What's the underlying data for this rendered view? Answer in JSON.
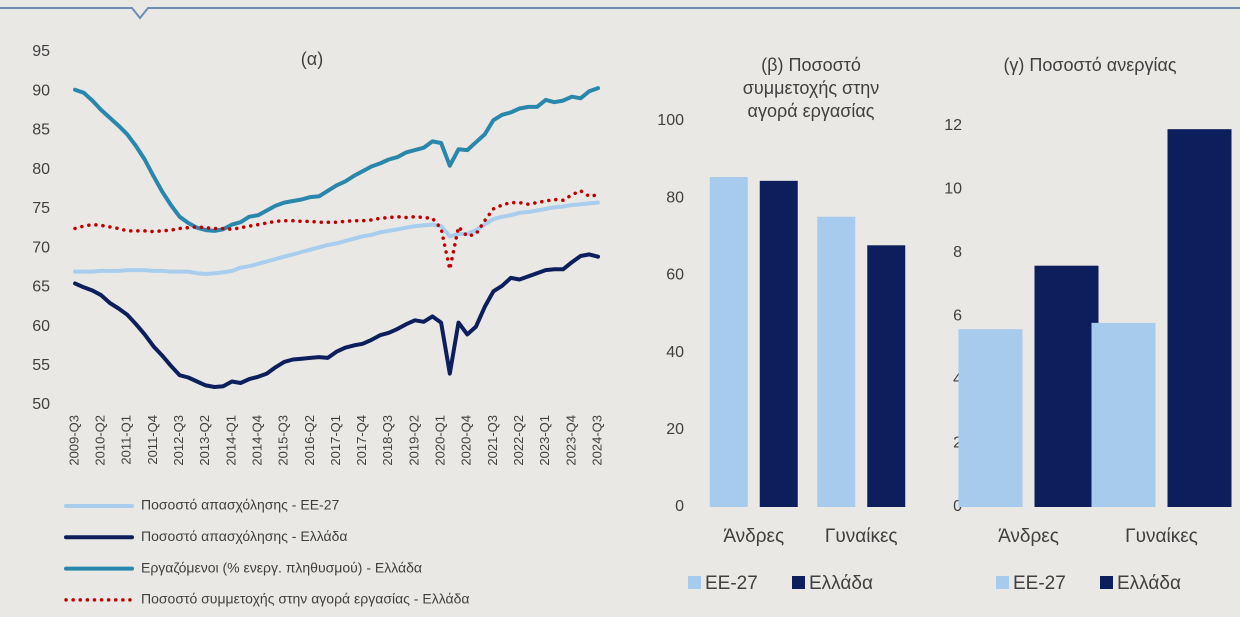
{
  "chart_data": [
    {
      "type": "line",
      "title": "(α)",
      "categories": [
        "2009-Q3",
        null,
        null,
        "2010-Q2",
        null,
        null,
        "2011-Q1",
        null,
        null,
        "2011-Q4",
        null,
        null,
        "2012-Q3",
        null,
        null,
        "2013-Q2",
        null,
        null,
        "2014-Q1",
        null,
        null,
        "2014-Q4",
        null,
        null,
        "2015-Q3",
        null,
        null,
        "2016-Q2",
        null,
        null,
        "2017-Q1",
        null,
        null,
        "2017-Q4",
        null,
        null,
        "2018-Q3",
        null,
        null,
        "2019-Q2",
        null,
        null,
        "2020-Q1",
        null,
        null,
        "2020-Q4",
        null,
        null,
        "2021-Q3",
        null,
        null,
        "2022-Q2",
        null,
        null,
        "2023-Q1",
        null,
        null,
        "2023-Q4",
        null,
        null,
        "2024-Q3"
      ],
      "ylim": [
        50,
        95
      ],
      "yticks": [
        50,
        55,
        60,
        65,
        70,
        75,
        80,
        85,
        90,
        95
      ],
      "series": [
        {
          "name": "Ποσοστό απασχόλησης - ΕΕ-27",
          "color": "#a9cdec",
          "dash": "solid",
          "values": [
            67.0,
            67,
            67,
            67.1,
            67.1,
            67.1,
            67.2,
            67.2,
            67.2,
            67.1,
            67.1,
            67,
            67,
            67,
            66.8,
            66.7,
            66.8,
            66.9,
            67.1,
            67.5,
            67.7,
            68,
            68.3,
            68.6,
            68.9,
            69.2,
            69.5,
            69.8,
            70.1,
            70.4,
            70.6,
            70.9,
            71.2,
            71.5,
            71.7,
            72,
            72.2,
            72.4,
            72.6,
            72.8,
            72.9,
            73,
            72.8,
            71.5,
            71.8,
            71.8,
            72.3,
            73,
            73.7,
            74,
            74.2,
            74.5,
            74.6,
            74.8,
            75,
            75.2,
            75.3,
            75.5,
            75.6,
            75.7,
            75.8
          ]
        },
        {
          "name": "Ποσοστό απασχόλησης - Ελλάδα",
          "color": "#0c1f5c",
          "dash": "solid",
          "values": [
            65.5,
            65,
            64.6,
            64,
            63,
            62.3,
            61.5,
            60.3,
            59,
            57.5,
            56.3,
            55,
            53.8,
            53.5,
            53,
            52.5,
            52.3,
            52.4,
            53,
            52.8,
            53.3,
            53.6,
            54,
            54.8,
            55.5,
            55.8,
            55.9,
            56,
            56.1,
            56,
            56.8,
            57.3,
            57.6,
            57.8,
            58.3,
            58.9,
            59.2,
            59.7,
            60.3,
            60.8,
            60.6,
            61.3,
            60.5,
            54,
            60.5,
            59,
            60,
            62.5,
            64.5,
            65.2,
            66.2,
            66,
            66.4,
            66.8,
            67.2,
            67.3,
            67.3,
            68.2,
            69,
            69.2,
            68.9
          ]
        },
        {
          "name": "Εργαζόμενοι (% ενεργ. πληθυσμού) - Ελλάδα",
          "color": "#2a87ac",
          "dash": "solid",
          "values": [
            90.2,
            89.8,
            88.8,
            87.6,
            86.6,
            85.6,
            84.5,
            83,
            81.3,
            79.2,
            77.2,
            75.5,
            74,
            73.2,
            72.6,
            72.3,
            72.2,
            72.4,
            73,
            73.3,
            74,
            74.2,
            74.8,
            75.4,
            75.8,
            76,
            76.2,
            76.5,
            76.6,
            77.3,
            78,
            78.5,
            79.2,
            79.8,
            80.4,
            80.8,
            81.3,
            81.6,
            82.2,
            82.5,
            82.8,
            83.6,
            83.4,
            80.5,
            82.6,
            82.5,
            83.5,
            84.5,
            86.3,
            87,
            87.3,
            87.8,
            88,
            88,
            88.9,
            88.6,
            88.8,
            89.3,
            89.1,
            90,
            90.4
          ]
        },
        {
          "name": "Ποσοστό συμμετοχής στην αγορά εργασίας - Ελλάδα",
          "color": "#c00000",
          "dash": "dotted",
          "values": [
            72.5,
            72.8,
            73,
            72.9,
            72.7,
            72.5,
            72.2,
            72.2,
            72.2,
            72.1,
            72.2,
            72.3,
            72.5,
            72.6,
            72.7,
            72.6,
            72.5,
            72.5,
            72.4,
            72.6,
            72.8,
            73,
            73.2,
            73.4,
            73.5,
            73.5,
            73.4,
            73.4,
            73.3,
            73.3,
            73.3,
            73.4,
            73.5,
            73.5,
            73.6,
            73.8,
            73.9,
            74,
            73.9,
            74,
            73.9,
            73.8,
            72.5,
            67.3,
            72.7,
            71.5,
            71.8,
            73.5,
            75,
            75.5,
            75.8,
            75.8,
            75.6,
            75.8,
            76,
            76.2,
            76.1,
            76.8,
            77.3,
            76.6,
            76.8
          ]
        }
      ]
    },
    {
      "type": "bar",
      "title": "(β) Ποσοστό συμμετοχής στην αγορά εργασίας",
      "categories": [
        "Άνδρες",
        "Γυναίκες"
      ],
      "ylim": [
        0,
        100
      ],
      "yticks": [
        0,
        20,
        40,
        60,
        80,
        100
      ],
      "series": [
        {
          "name": "ΕΕ-27",
          "color": "#a6cbec",
          "values": [
            85.5,
            75.2
          ]
        },
        {
          "name": "Ελλάδα",
          "color": "#0c1f5c",
          "values": [
            84.5,
            67.8
          ]
        }
      ]
    },
    {
      "type": "bar",
      "title": "(γ) Ποσοστό ανεργίας",
      "categories": [
        "Άνδρες",
        "Γυναίκες"
      ],
      "ylim": [
        0,
        12
      ],
      "yticks": [
        0,
        2,
        4,
        6,
        8,
        10,
        12
      ],
      "series": [
        {
          "name": "ΕΕ-27",
          "color": "#a6cbec",
          "values": [
            5.6,
            5.8
          ]
        },
        {
          "name": "Ελλάδα",
          "color": "#0c1f5c",
          "values": [
            7.6,
            11.9
          ]
        }
      ]
    }
  ]
}
